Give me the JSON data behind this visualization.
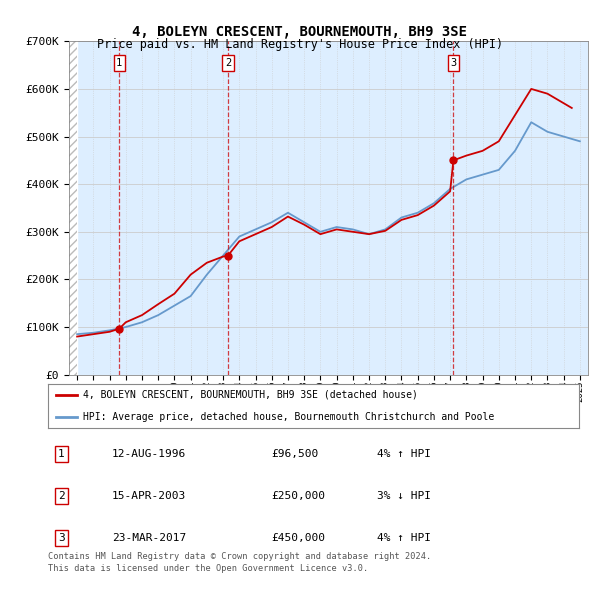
{
  "title": "4, BOLEYN CRESCENT, BOURNEMOUTH, BH9 3SE",
  "subtitle": "Price paid vs. HM Land Registry's House Price Index (HPI)",
  "xlabel": "",
  "ylabel": "",
  "ylim": [
    0,
    700000
  ],
  "yticks": [
    0,
    100000,
    200000,
    300000,
    400000,
    500000,
    600000,
    700000
  ],
  "ytick_labels": [
    "£0",
    "£100K",
    "£200K",
    "£300K",
    "£400K",
    "£500K",
    "£600K",
    "£700K"
  ],
  "xlim_start": 1993.5,
  "xlim_end": 2025.5,
  "transactions": [
    {
      "year": 1996.6,
      "price": 96500,
      "label": "1",
      "date": "12-AUG-1996",
      "price_str": "£96,500",
      "hpi_change": "4% ↑ HPI"
    },
    {
      "year": 2003.3,
      "price": 250000,
      "label": "2",
      "date": "15-APR-2003",
      "price_str": "£250,000",
      "hpi_change": "3% ↓ HPI"
    },
    {
      "year": 2017.2,
      "price": 450000,
      "label": "3",
      "date": "23-MAR-2017",
      "price_str": "£450,000",
      "hpi_change": "4% ↑ HPI"
    }
  ],
  "legend_line1": "4, BOLEYN CRESCENT, BOURNEMOUTH, BH9 3SE (detached house)",
  "legend_line2": "HPI: Average price, detached house, Bournemouth Christchurch and Poole",
  "footnote1": "Contains HM Land Registry data © Crown copyright and database right 2024.",
  "footnote2": "This data is licensed under the Open Government Licence v3.0.",
  "red_line_color": "#cc0000",
  "blue_line_color": "#6699cc",
  "grid_color": "#cccccc",
  "bg_color": "#ddeeff",
  "plot_bg": "#ffffff",
  "hpi_years": [
    1994,
    1995,
    1996,
    1997,
    1998,
    1999,
    2000,
    2001,
    2002,
    2003,
    2004,
    2005,
    2006,
    2007,
    2008,
    2009,
    2010,
    2011,
    2012,
    2013,
    2014,
    2015,
    2016,
    2017,
    2018,
    2019,
    2020,
    2021,
    2022,
    2023,
    2024,
    2025
  ],
  "hpi_values": [
    85000,
    88000,
    93000,
    100000,
    110000,
    125000,
    145000,
    165000,
    210000,
    250000,
    290000,
    305000,
    320000,
    340000,
    320000,
    300000,
    310000,
    305000,
    295000,
    305000,
    330000,
    340000,
    360000,
    390000,
    410000,
    420000,
    430000,
    470000,
    530000,
    510000,
    500000,
    490000
  ],
  "red_years": [
    1994,
    1995,
    1996,
    1996.6,
    1997,
    1998,
    1999,
    2000,
    2001,
    2002,
    2003,
    2003.3,
    2004,
    2005,
    2006,
    2007,
    2008,
    2009,
    2010,
    2011,
    2012,
    2013,
    2014,
    2015,
    2016,
    2017,
    2017.2,
    2018,
    2019,
    2020,
    2021,
    2022,
    2023,
    2024,
    2024.5
  ],
  "red_values": [
    80000,
    85000,
    90000,
    96500,
    110000,
    125000,
    148000,
    170000,
    210000,
    235000,
    248000,
    250000,
    280000,
    295000,
    310000,
    332000,
    315000,
    295000,
    305000,
    300000,
    295000,
    302000,
    325000,
    335000,
    355000,
    385000,
    450000,
    460000,
    470000,
    490000,
    545000,
    600000,
    590000,
    570000,
    560000
  ]
}
